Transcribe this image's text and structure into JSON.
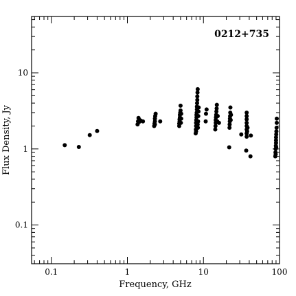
{
  "chart_data": {
    "type": "scatter",
    "title": "",
    "annotation": "0212+735",
    "xlabel": "Frequency, GHz",
    "ylabel": "Flux Density, Jy",
    "xscale": "log",
    "yscale": "log",
    "xlim": [
      0.055,
      100
    ],
    "ylim": [
      0.031,
      55
    ],
    "xticks": [
      {
        "value": 0.1,
        "label": "0.1"
      },
      {
        "value": 1,
        "label": "1"
      },
      {
        "value": 10,
        "label": "10"
      },
      {
        "value": 100,
        "label": "100"
      }
    ],
    "yticks": [
      {
        "value": 0.1,
        "label": "0.1"
      },
      {
        "value": 1,
        "label": "1"
      },
      {
        "value": 10,
        "label": "10"
      }
    ],
    "grid": false,
    "series": [
      {
        "color": "#000000",
        "points": [
          {
            "x": 0.15,
            "y": 1.12
          },
          {
            "x": 0.23,
            "y": 1.06
          },
          {
            "x": 0.32,
            "y": 1.52
          },
          {
            "x": 0.4,
            "y": 1.72
          },
          {
            "x": 1.36,
            "y": 2.1
          },
          {
            "x": 1.38,
            "y": 2.3
          },
          {
            "x": 1.4,
            "y": 2.55
          },
          {
            "x": 1.42,
            "y": 2.25
          },
          {
            "x": 1.45,
            "y": 2.4
          },
          {
            "x": 1.5,
            "y": 2.35
          },
          {
            "x": 1.6,
            "y": 2.3
          },
          {
            "x": 2.25,
            "y": 2.0
          },
          {
            "x": 2.27,
            "y": 2.15
          },
          {
            "x": 2.3,
            "y": 2.3
          },
          {
            "x": 2.3,
            "y": 2.5
          },
          {
            "x": 2.32,
            "y": 2.7
          },
          {
            "x": 2.35,
            "y": 2.9
          },
          {
            "x": 2.3,
            "y": 2.1
          },
          {
            "x": 2.7,
            "y": 2.3
          },
          {
            "x": 4.8,
            "y": 2.0
          },
          {
            "x": 4.8,
            "y": 2.15
          },
          {
            "x": 4.85,
            "y": 2.3
          },
          {
            "x": 4.85,
            "y": 2.45
          },
          {
            "x": 4.9,
            "y": 2.6
          },
          {
            "x": 4.9,
            "y": 2.8
          },
          {
            "x": 4.95,
            "y": 3.0
          },
          {
            "x": 5.0,
            "y": 3.2
          },
          {
            "x": 5.0,
            "y": 3.7
          },
          {
            "x": 5.05,
            "y": 2.2
          },
          {
            "x": 5.1,
            "y": 2.5
          },
          {
            "x": 5.1,
            "y": 2.9
          },
          {
            "x": 7.9,
            "y": 1.6
          },
          {
            "x": 7.95,
            "y": 1.8
          },
          {
            "x": 8.0,
            "y": 2.0
          },
          {
            "x": 8.0,
            "y": 2.2
          },
          {
            "x": 8.05,
            "y": 2.4
          },
          {
            "x": 8.1,
            "y": 2.6
          },
          {
            "x": 8.1,
            "y": 2.8
          },
          {
            "x": 8.15,
            "y": 3.0
          },
          {
            "x": 8.2,
            "y": 3.3
          },
          {
            "x": 8.2,
            "y": 3.6
          },
          {
            "x": 8.25,
            "y": 4.0
          },
          {
            "x": 8.3,
            "y": 4.4
          },
          {
            "x": 8.3,
            "y": 4.9
          },
          {
            "x": 8.35,
            "y": 5.5
          },
          {
            "x": 8.4,
            "y": 6.1
          },
          {
            "x": 8.45,
            "y": 1.9
          },
          {
            "x": 8.5,
            "y": 2.3
          },
          {
            "x": 8.55,
            "y": 2.7
          },
          {
            "x": 8.6,
            "y": 3.1
          },
          {
            "x": 8.65,
            "y": 3.5
          },
          {
            "x": 8.0,
            "y": 1.7
          },
          {
            "x": 8.4,
            "y": 2.1
          },
          {
            "x": 10.7,
            "y": 2.3
          },
          {
            "x": 10.8,
            "y": 2.9
          },
          {
            "x": 11.0,
            "y": 3.3
          },
          {
            "x": 14.3,
            "y": 1.8
          },
          {
            "x": 14.4,
            "y": 2.0
          },
          {
            "x": 14.5,
            "y": 2.2
          },
          {
            "x": 14.5,
            "y": 2.4
          },
          {
            "x": 14.6,
            "y": 2.6
          },
          {
            "x": 14.7,
            "y": 2.8
          },
          {
            "x": 14.8,
            "y": 3.1
          },
          {
            "x": 14.9,
            "y": 3.4
          },
          {
            "x": 15.0,
            "y": 3.8
          },
          {
            "x": 15.2,
            "y": 2.3
          },
          {
            "x": 15.4,
            "y": 2.7
          },
          {
            "x": 16.0,
            "y": 2.2
          },
          {
            "x": 21.8,
            "y": 1.05
          },
          {
            "x": 22.0,
            "y": 1.9
          },
          {
            "x": 22.1,
            "y": 2.1
          },
          {
            "x": 22.2,
            "y": 2.3
          },
          {
            "x": 22.3,
            "y": 2.5
          },
          {
            "x": 22.4,
            "y": 2.7
          },
          {
            "x": 22.5,
            "y": 3.0
          },
          {
            "x": 22.6,
            "y": 3.5
          },
          {
            "x": 22.8,
            "y": 2.4
          },
          {
            "x": 23.0,
            "y": 2.8
          },
          {
            "x": 31.4,
            "y": 1.55
          },
          {
            "x": 36.5,
            "y": 0.95
          },
          {
            "x": 37.0,
            "y": 1.45
          },
          {
            "x": 37.0,
            "y": 1.6
          },
          {
            "x": 37.0,
            "y": 1.8
          },
          {
            "x": 37.0,
            "y": 2.0
          },
          {
            "x": 37.0,
            "y": 2.2
          },
          {
            "x": 37.0,
            "y": 2.45
          },
          {
            "x": 37.0,
            "y": 2.7
          },
          {
            "x": 37.0,
            "y": 3.0
          },
          {
            "x": 37.5,
            "y": 1.7
          },
          {
            "x": 38.0,
            "y": 1.9
          },
          {
            "x": 41.5,
            "y": 0.8
          },
          {
            "x": 42.0,
            "y": 1.5
          },
          {
            "x": 88.0,
            "y": 0.8
          },
          {
            "x": 88.5,
            "y": 0.9
          },
          {
            "x": 89.0,
            "y": 1.0
          },
          {
            "x": 89.5,
            "y": 1.1
          },
          {
            "x": 90.0,
            "y": 1.2
          },
          {
            "x": 90.0,
            "y": 1.3
          },
          {
            "x": 90.0,
            "y": 1.42
          },
          {
            "x": 90.5,
            "y": 1.55
          },
          {
            "x": 91.0,
            "y": 1.7
          },
          {
            "x": 91.5,
            "y": 1.9
          },
          {
            "x": 92.0,
            "y": 2.2
          },
          {
            "x": 92.0,
            "y": 2.5
          },
          {
            "x": 89.0,
            "y": 0.85
          },
          {
            "x": 90.5,
            "y": 1.05
          }
        ]
      }
    ]
  }
}
